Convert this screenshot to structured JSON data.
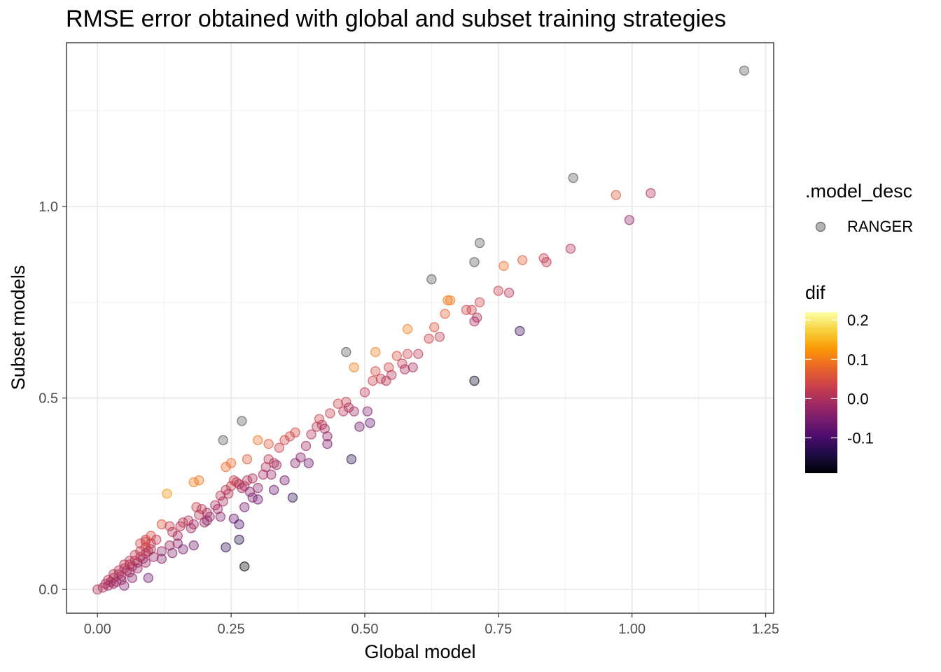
{
  "chart_data": {
    "type": "scatter",
    "title": "RMSE error obtained with global and subset training strategies",
    "xlabel": "Global model",
    "ylabel": "Subset models",
    "xlim": [
      -0.058,
      1.265
    ],
    "ylim": [
      -0.062,
      1.428
    ],
    "x_ticks": [
      0,
      0.25,
      0.5,
      0.75,
      1.0,
      1.25
    ],
    "x_tick_labels": [
      "0.00",
      "0.25",
      "0.50",
      "0.75",
      "1.00",
      "1.25"
    ],
    "y_ticks": [
      0,
      0.5,
      1.0
    ],
    "y_tick_labels": [
      "0.0",
      "0.5",
      "1.0"
    ],
    "grid": true,
    "legend_position": "right",
    "legend_shape": {
      "title": ".model_desc",
      "entries": [
        "RANGER"
      ]
    },
    "legend_color": {
      "title": "dif",
      "range": [
        -0.19,
        0.22
      ],
      "ticks": [
        0.2,
        0.1,
        0.0,
        -0.1
      ],
      "tick_labels": [
        "0.2",
        "0.1",
        "0.0",
        "-0.1"
      ],
      "palette": [
        "#000004",
        "#1b0c41",
        "#4a0c6b",
        "#781c6d",
        "#a52c60",
        "#cf4446",
        "#ed6925",
        "#fb9b06",
        "#f7d13d",
        "#fcffa4"
      ]
    },
    "point_style": {
      "opacity": 0.35,
      "na_color": "#555555"
    },
    "series": [
      {
        "name": "RANGER",
        "points": [
          [
            0.0,
            0.0,
            0.0
          ],
          [
            0.01,
            0.005,
            -0.005
          ],
          [
            0.015,
            0.015,
            0.0
          ],
          [
            0.02,
            0.01,
            -0.01
          ],
          [
            0.025,
            0.02,
            -0.005
          ],
          [
            0.03,
            0.03,
            0.0
          ],
          [
            0.035,
            0.02,
            -0.015
          ],
          [
            0.04,
            0.04,
            0.0
          ],
          [
            0.045,
            0.035,
            -0.01
          ],
          [
            0.05,
            0.055,
            0.005
          ],
          [
            0.055,
            0.05,
            -0.005
          ],
          [
            0.06,
            0.065,
            0.005
          ],
          [
            0.065,
            0.06,
            -0.005
          ],
          [
            0.07,
            0.075,
            0.005
          ],
          [
            0.075,
            0.07,
            -0.005
          ],
          [
            0.08,
            0.085,
            0.005
          ],
          [
            0.085,
            0.08,
            -0.005
          ],
          [
            0.09,
            0.095,
            0.005
          ],
          [
            0.095,
            0.1,
            0.005
          ],
          [
            0.1,
            0.105,
            0.005
          ],
          [
            0.02,
            0.025,
            0.005
          ],
          [
            0.03,
            0.04,
            0.01
          ],
          [
            0.04,
            0.05,
            0.01
          ],
          [
            0.05,
            0.065,
            0.015
          ],
          [
            0.06,
            0.075,
            0.015
          ],
          [
            0.07,
            0.09,
            0.02
          ],
          [
            0.08,
            0.1,
            0.02
          ],
          [
            0.09,
            0.11,
            0.02
          ],
          [
            0.1,
            0.12,
            0.02
          ],
          [
            0.11,
            0.13,
            0.02
          ],
          [
            0.03,
            0.015,
            -0.015
          ],
          [
            0.045,
            0.025,
            -0.02
          ],
          [
            0.06,
            0.045,
            -0.015
          ],
          [
            0.075,
            0.055,
            -0.02
          ],
          [
            0.09,
            0.07,
            -0.02
          ],
          [
            0.105,
            0.085,
            -0.02
          ],
          [
            0.12,
            0.1,
            -0.02
          ],
          [
            0.135,
            0.115,
            -0.02
          ],
          [
            0.05,
            0.01,
            -0.04
          ],
          [
            0.065,
            0.03,
            -0.035
          ],
          [
            0.095,
            0.03,
            -0.065
          ],
          [
            0.12,
            0.08,
            -0.04
          ],
          [
            0.14,
            0.095,
            -0.045
          ],
          [
            0.1,
            0.14,
            0.04
          ],
          [
            0.09,
            0.13,
            0.04
          ],
          [
            0.12,
            0.17,
            0.05
          ],
          [
            0.135,
            0.165,
            0.03
          ],
          [
            0.14,
            0.15,
            0.01
          ],
          [
            0.15,
            0.14,
            -0.01
          ],
          [
            0.155,
            0.165,
            0.01
          ],
          [
            0.16,
            0.175,
            0.015
          ],
          [
            0.17,
            0.18,
            0.01
          ],
          [
            0.175,
            0.16,
            -0.015
          ],
          [
            0.18,
            0.17,
            -0.01
          ],
          [
            0.185,
            0.215,
            0.03
          ],
          [
            0.19,
            0.195,
            0.005
          ],
          [
            0.195,
            0.21,
            0.015
          ],
          [
            0.2,
            0.175,
            -0.025
          ],
          [
            0.205,
            0.2,
            -0.005
          ],
          [
            0.21,
            0.19,
            -0.02
          ],
          [
            0.22,
            0.22,
            0.0
          ],
          [
            0.225,
            0.21,
            -0.015
          ],
          [
            0.23,
            0.245,
            0.015
          ],
          [
            0.235,
            0.23,
            -0.005
          ],
          [
            0.24,
            0.26,
            0.02
          ],
          [
            0.245,
            0.25,
            0.005
          ],
          [
            0.25,
            0.27,
            0.02
          ],
          [
            0.255,
            0.285,
            0.03
          ],
          [
            0.26,
            0.28,
            0.02
          ],
          [
            0.265,
            0.275,
            0.01
          ],
          [
            0.27,
            0.265,
            -0.005
          ],
          [
            0.275,
            0.27,
            -0.005
          ],
          [
            0.28,
            0.285,
            0.005
          ],
          [
            0.285,
            0.255,
            -0.03
          ],
          [
            0.29,
            0.29,
            0.0
          ],
          [
            0.3,
            0.265,
            -0.035
          ],
          [
            0.31,
            0.3,
            -0.01
          ],
          [
            0.315,
            0.32,
            0.005
          ],
          [
            0.32,
            0.34,
            0.02
          ],
          [
            0.325,
            0.3,
            -0.025
          ],
          [
            0.33,
            0.33,
            0.0
          ],
          [
            0.335,
            0.325,
            -0.01
          ],
          [
            0.34,
            0.37,
            0.03
          ],
          [
            0.35,
            0.39,
            0.04
          ],
          [
            0.36,
            0.4,
            0.04
          ],
          [
            0.37,
            0.41,
            0.04
          ],
          [
            0.38,
            0.345,
            -0.035
          ],
          [
            0.39,
            0.375,
            -0.015
          ],
          [
            0.4,
            0.405,
            0.005
          ],
          [
            0.41,
            0.425,
            0.015
          ],
          [
            0.415,
            0.445,
            0.03
          ],
          [
            0.42,
            0.43,
            0.01
          ],
          [
            0.425,
            0.42,
            -0.005
          ],
          [
            0.43,
            0.4,
            -0.03
          ],
          [
            0.435,
            0.46,
            0.025
          ],
          [
            0.45,
            0.485,
            0.035
          ],
          [
            0.46,
            0.465,
            0.005
          ],
          [
            0.465,
            0.49,
            0.025
          ],
          [
            0.47,
            0.475,
            0.005
          ],
          [
            0.48,
            0.465,
            -0.015
          ],
          [
            0.49,
            0.425,
            -0.065
          ],
          [
            0.5,
            0.515,
            0.015
          ],
          [
            0.505,
            0.465,
            -0.04
          ],
          [
            0.51,
            0.435,
            -0.075
          ],
          [
            0.515,
            0.545,
            0.03
          ],
          [
            0.52,
            0.57,
            0.05
          ],
          [
            0.53,
            0.55,
            0.02
          ],
          [
            0.54,
            0.545,
            0.005
          ],
          [
            0.545,
            0.58,
            0.035
          ],
          [
            0.55,
            0.56,
            0.01
          ],
          [
            0.56,
            0.61,
            0.05
          ],
          [
            0.57,
            0.59,
            0.02
          ],
          [
            0.575,
            0.575,
            0.0
          ],
          [
            0.58,
            0.615,
            0.035
          ],
          [
            0.59,
            0.58,
            -0.01
          ],
          [
            0.6,
            0.615,
            0.015
          ],
          [
            0.62,
            0.655,
            0.035
          ],
          [
            0.63,
            0.685,
            0.055
          ],
          [
            0.64,
            0.66,
            0.02
          ],
          [
            0.65,
            0.72,
            0.07
          ],
          [
            0.655,
            0.755,
            0.1
          ],
          [
            0.66,
            0.755,
            0.095
          ],
          [
            0.69,
            0.73,
            0.04
          ],
          [
            0.7,
            0.73,
            0.03
          ],
          [
            0.705,
            0.7,
            -0.005
          ],
          [
            0.71,
            0.71,
            0.0
          ],
          [
            0.715,
            0.75,
            0.035
          ],
          [
            0.75,
            0.78,
            0.03
          ],
          [
            0.76,
            0.845,
            0.085
          ],
          [
            0.77,
            0.775,
            0.005
          ],
          [
            0.795,
            0.86,
            0.065
          ],
          [
            0.835,
            0.865,
            0.03
          ],
          [
            0.84,
            0.855,
            0.015
          ],
          [
            0.885,
            0.89,
            0.005
          ],
          [
            0.97,
            1.03,
            0.06
          ],
          [
            0.995,
            0.965,
            -0.03
          ],
          [
            1.035,
            1.035,
            0.0
          ],
          [
            0.58,
            0.68,
            0.1
          ],
          [
            0.52,
            0.62,
            0.1
          ],
          [
            0.48,
            0.58,
            0.1
          ],
          [
            0.13,
            0.25,
            0.12
          ],
          [
            0.18,
            0.28,
            0.1
          ],
          [
            0.19,
            0.285,
            0.095
          ],
          [
            0.25,
            0.33,
            0.08
          ],
          [
            0.24,
            0.32,
            0.08
          ],
          [
            0.3,
            0.39,
            0.09
          ],
          [
            0.32,
            0.38,
            0.06
          ],
          [
            0.28,
            0.34,
            0.06
          ],
          [
            0.09,
            0.125,
            0.035
          ],
          [
            0.08,
            0.12,
            0.04
          ],
          [
            0.15,
            0.12,
            -0.03
          ],
          [
            0.16,
            0.105,
            -0.055
          ],
          [
            0.18,
            0.115,
            -0.065
          ],
          [
            0.205,
            0.18,
            -0.025
          ],
          [
            0.23,
            0.19,
            -0.04
          ],
          [
            0.255,
            0.185,
            -0.07
          ],
          [
            0.275,
            0.215,
            -0.06
          ],
          [
            0.29,
            0.24,
            -0.05
          ],
          [
            0.3,
            0.235,
            -0.065
          ],
          [
            0.33,
            0.26,
            -0.07
          ],
          [
            0.35,
            0.285,
            -0.065
          ],
          [
            0.37,
            0.33,
            -0.04
          ],
          [
            0.395,
            0.33,
            -0.065
          ],
          [
            0.43,
            0.38,
            -0.05
          ],
          [
            0.24,
            0.11,
            -0.13
          ],
          [
            0.265,
            0.13,
            -0.135
          ],
          [
            0.265,
            0.17,
            -0.095
          ],
          [
            0.365,
            0.24,
            -0.125
          ],
          [
            0.475,
            0.34,
            -0.135
          ],
          [
            0.275,
            0.06,
            -0.215
          ],
          [
            0.705,
            0.545,
            -0.16
          ],
          [
            0.79,
            0.675,
            -0.115
          ],
          [
            0.465,
            0.62,
            null
          ],
          [
            0.27,
            0.44,
            null
          ],
          [
            0.235,
            0.39,
            null
          ],
          [
            0.625,
            0.81,
            null
          ],
          [
            0.705,
            0.855,
            null
          ],
          [
            0.715,
            0.905,
            null
          ],
          [
            0.89,
            1.075,
            null
          ],
          [
            1.21,
            1.355,
            null
          ]
        ]
      }
    ]
  }
}
